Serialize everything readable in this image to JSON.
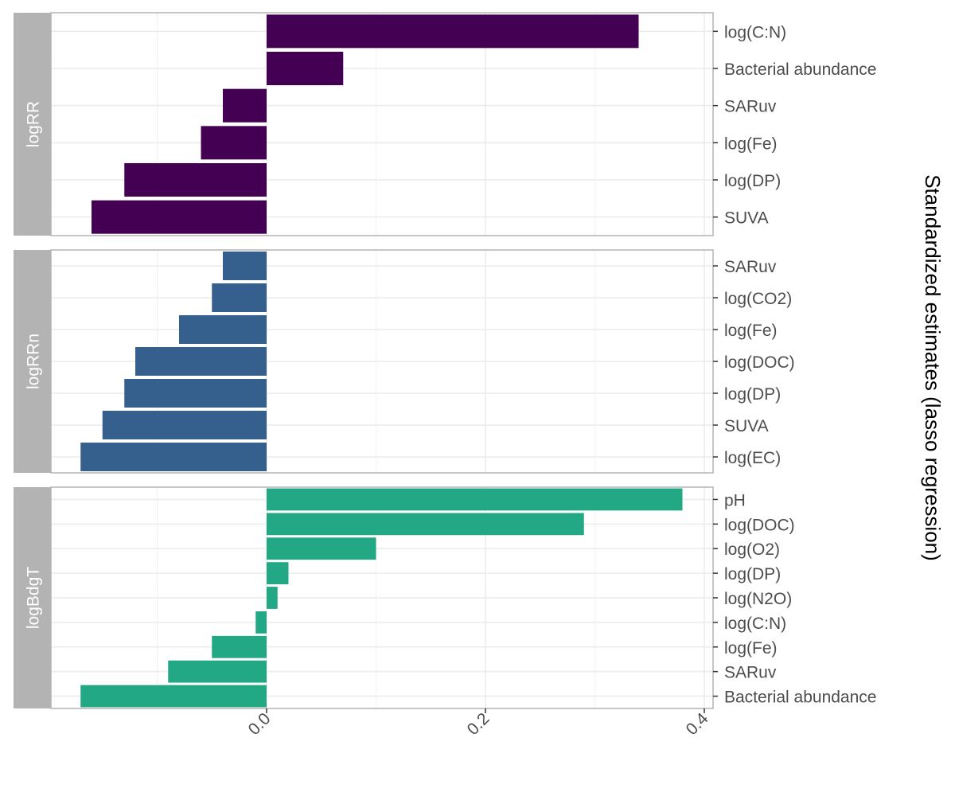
{
  "chart_data": {
    "type": "bar",
    "orientation": "horizontal",
    "ylabel": "Standardized estimates (lasso regression)",
    "xlabel": "",
    "xlim": [
      -0.17,
      0.41
    ],
    "xticks": [
      0.0,
      0.2,
      0.4
    ],
    "xtick_labels": [
      "0.0",
      "0.2",
      "0.4"
    ],
    "grid": true,
    "legend": "none",
    "panels": [
      {
        "strip": "logRR",
        "color": "#440154",
        "categories": [
          "log(C:N)",
          "Bacterial abundance",
          "SARuv",
          "log(Fe)",
          "log(DP)",
          "SUVA"
        ],
        "values": [
          0.34,
          0.07,
          -0.04,
          -0.06,
          -0.13,
          -0.16
        ]
      },
      {
        "strip": "logRRn",
        "color": "#355F8D",
        "categories": [
          "SARuv",
          "log(CO2)",
          "log(Fe)",
          "log(DOC)",
          "log(DP)",
          "SUVA",
          "log(EC)"
        ],
        "values": [
          -0.04,
          -0.05,
          -0.08,
          -0.12,
          -0.13,
          -0.15,
          -0.17
        ]
      },
      {
        "strip": "logBdgT",
        "color": "#22A884",
        "categories": [
          "pH",
          "log(DOC)",
          "log(O2)",
          "log(DP)",
          "log(N2O)",
          "log(C:N)",
          "log(Fe)",
          "SARuv",
          "Bacterial abundance"
        ],
        "values": [
          0.38,
          0.29,
          0.1,
          0.02,
          0.01,
          -0.01,
          -0.05,
          -0.09,
          -0.17
        ]
      }
    ]
  }
}
